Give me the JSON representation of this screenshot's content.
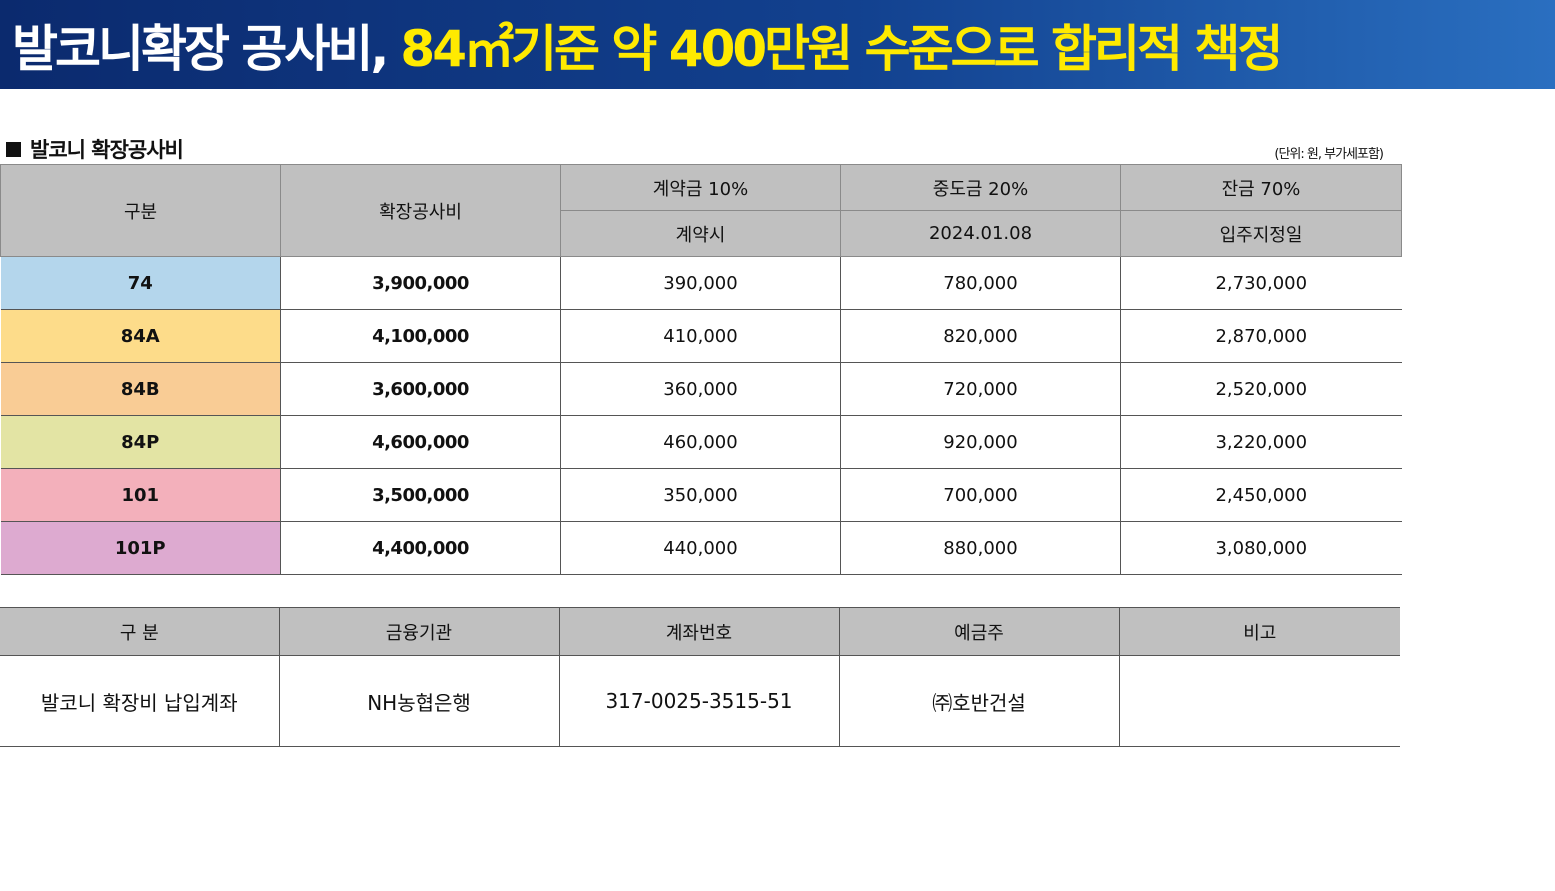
{
  "banner": {
    "title_white": "발코니확장 공사비,",
    "title_yellow": "84㎡기준 약 400만원 수준으로 합리적 책정"
  },
  "section": {
    "title": "발코니 확장공사비",
    "unit_note": "(단위: 원, 부가세포함)"
  },
  "table": {
    "headers": {
      "category": "구분",
      "cost": "확장공사비",
      "contract": "계약금 10%",
      "contract_sub": "계약시",
      "interim": "중도금 20%",
      "interim_sub": "2024.01.08",
      "balance": "잔금 70%",
      "balance_sub": "입주지정일"
    },
    "rows": [
      {
        "type": "74",
        "cost": "3,900,000",
        "contract": "390,000",
        "interim": "780,000",
        "balance": "2,730,000",
        "color": "#b4d6ec"
      },
      {
        "type": "84A",
        "cost": "4,100,000",
        "contract": "410,000",
        "interim": "820,000",
        "balance": "2,870,000",
        "color": "#fddc8a"
      },
      {
        "type": "84B",
        "cost": "3,600,000",
        "contract": "360,000",
        "interim": "720,000",
        "balance": "2,520,000",
        "color": "#f9cc95"
      },
      {
        "type": "84P",
        "cost": "4,600,000",
        "contract": "460,000",
        "interim": "920,000",
        "balance": "3,220,000",
        "color": "#e3e4a4"
      },
      {
        "type": "101",
        "cost": "3,500,000",
        "contract": "350,000",
        "interim": "700,000",
        "balance": "2,450,000",
        "color": "#f3b0bb"
      },
      {
        "type": "101P",
        "cost": "4,400,000",
        "contract": "440,000",
        "interim": "880,000",
        "balance": "3,080,000",
        "color": "#ddaad0"
      }
    ]
  },
  "account": {
    "headers": {
      "category": "구 분",
      "bank": "금융기관",
      "account_no": "계좌번호",
      "holder": "예금주",
      "note": "비고"
    },
    "row": {
      "category": "발코니 확장비 납입계좌",
      "bank": "NH농협은행",
      "account_no": "317-0025-3515-51",
      "holder": "㈜호반건설",
      "note": ""
    }
  }
}
